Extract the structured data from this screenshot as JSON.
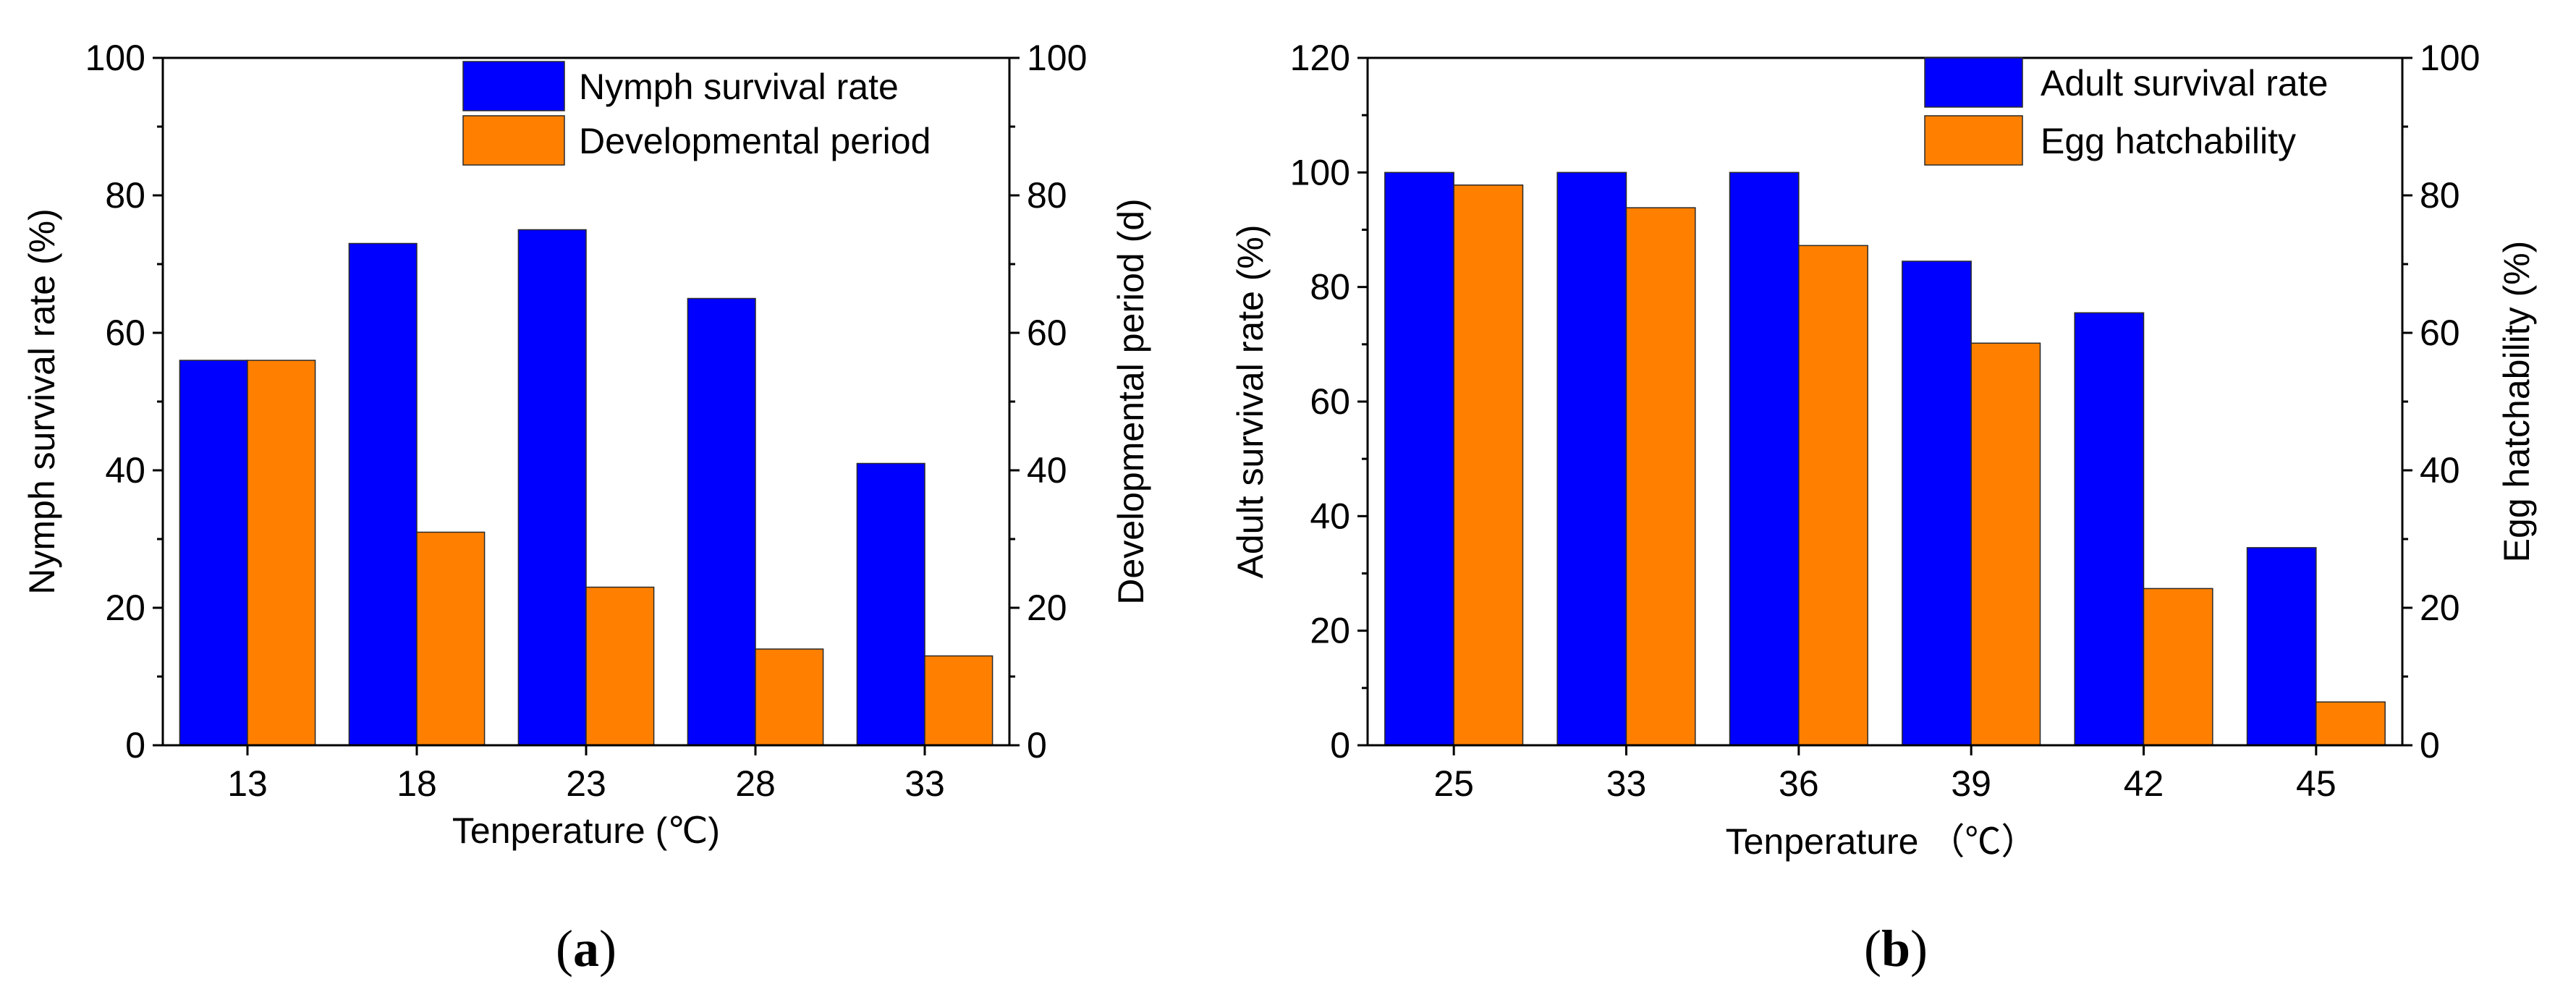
{
  "colors": {
    "series1": "#0000ff",
    "series2": "#ff8000",
    "axis": "#000000"
  },
  "chart_data": [
    {
      "panel_label": "a",
      "type": "bar",
      "categories": [
        "13",
        "18",
        "23",
        "28",
        "33"
      ],
      "series": [
        {
          "name": "Nymph survival rate",
          "axis": "left",
          "values": [
            56,
            73,
            75,
            65,
            41
          ]
        },
        {
          "name": "Developmental period",
          "axis": "right",
          "values": [
            56,
            31,
            23,
            14,
            13
          ]
        }
      ],
      "xlabel": "Tenperature (℃)",
      "ylabel": "Nymph survival rate (%)",
      "y2label": "Developmental period (d)",
      "ylim": [
        0,
        100
      ],
      "y2lim": [
        0,
        100
      ],
      "yticks": [
        0,
        20,
        40,
        60,
        80,
        100
      ],
      "y2ticks": [
        0,
        20,
        40,
        60,
        80,
        100
      ],
      "legend_position": "top-right",
      "grid": false
    },
    {
      "panel_label": "b",
      "type": "bar",
      "categories": [
        "25",
        "33",
        "36",
        "39",
        "42",
        "45"
      ],
      "series": [
        {
          "name": "Adult survival rate",
          "axis": "left",
          "values": [
            100,
            100,
            100,
            84.5,
            75.5,
            34.5
          ]
        },
        {
          "name": "Egg hatchability",
          "axis": "right",
          "values": [
            81.5,
            78.2,
            72.7,
            58.5,
            22.8,
            6.3
          ]
        }
      ],
      "xlabel": "Tenperature （℃）",
      "ylabel": "Adult survival rate (%)",
      "y2label": "Egg hatchability (%)",
      "ylim": [
        0,
        120
      ],
      "y2lim": [
        0,
        100
      ],
      "yticks": [
        0,
        20,
        40,
        60,
        80,
        100,
        120
      ],
      "y2ticks": [
        0,
        20,
        40,
        60,
        80,
        100
      ],
      "legend_position": "top-right",
      "grid": false
    }
  ]
}
